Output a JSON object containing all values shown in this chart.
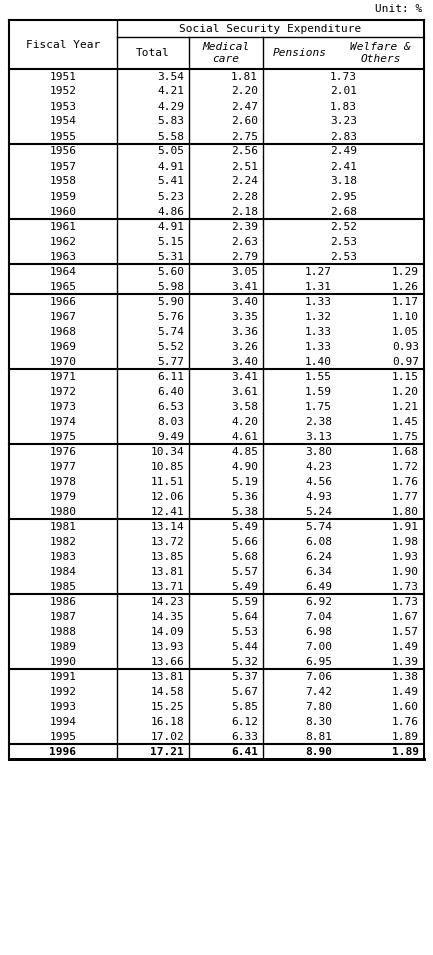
{
  "unit_label": "Unit: %",
  "col_headers_row1": [
    "Fiscal Year",
    "Social Security Expenditure"
  ],
  "col_headers_row2": [
    "",
    "Total",
    "Medical\ncare",
    "Pensions",
    "Welfare &\nOthers"
  ],
  "rows": [
    [
      "1951",
      "3.54",
      "1.81",
      "1.73",
      ""
    ],
    [
      "1952",
      "4.21",
      "2.20",
      "2.01",
      ""
    ],
    [
      "1953",
      "4.29",
      "2.47",
      "1.83",
      ""
    ],
    [
      "1954",
      "5.83",
      "2.60",
      "3.23",
      ""
    ],
    [
      "1955",
      "5.58",
      "2.75",
      "2.83",
      ""
    ],
    [
      "1956",
      "5.05",
      "2.56",
      "2.49",
      ""
    ],
    [
      "1957",
      "4.91",
      "2.51",
      "2.41",
      ""
    ],
    [
      "1958",
      "5.41",
      "2.24",
      "3.18",
      ""
    ],
    [
      "1959",
      "5.23",
      "2.28",
      "2.95",
      ""
    ],
    [
      "1960",
      "4.86",
      "2.18",
      "2.68",
      ""
    ],
    [
      "1961",
      "4.91",
      "2.39",
      "2.52",
      ""
    ],
    [
      "1962",
      "5.15",
      "2.63",
      "2.53",
      ""
    ],
    [
      "1963",
      "5.31",
      "2.79",
      "2.53",
      ""
    ],
    [
      "1964",
      "5.60",
      "3.05",
      "1.27",
      "1.29"
    ],
    [
      "1965",
      "5.98",
      "3.41",
      "1.31",
      "1.26"
    ],
    [
      "1966",
      "5.90",
      "3.40",
      "1.33",
      "1.17"
    ],
    [
      "1967",
      "5.76",
      "3.35",
      "1.32",
      "1.10"
    ],
    [
      "1968",
      "5.74",
      "3.36",
      "1.33",
      "1.05"
    ],
    [
      "1969",
      "5.52",
      "3.26",
      "1.33",
      "0.93"
    ],
    [
      "1970",
      "5.77",
      "3.40",
      "1.40",
      "0.97"
    ],
    [
      "1971",
      "6.11",
      "3.41",
      "1.55",
      "1.15"
    ],
    [
      "1972",
      "6.40",
      "3.61",
      "1.59",
      "1.20"
    ],
    [
      "1973",
      "6.53",
      "3.58",
      "1.75",
      "1.21"
    ],
    [
      "1974",
      "8.03",
      "4.20",
      "2.38",
      "1.45"
    ],
    [
      "1975",
      "9.49",
      "4.61",
      "3.13",
      "1.75"
    ],
    [
      "1976",
      "10.34",
      "4.85",
      "3.80",
      "1.68"
    ],
    [
      "1977",
      "10.85",
      "4.90",
      "4.23",
      "1.72"
    ],
    [
      "1978",
      "11.51",
      "5.19",
      "4.56",
      "1.76"
    ],
    [
      "1979",
      "12.06",
      "5.36",
      "4.93",
      "1.77"
    ],
    [
      "1980",
      "12.41",
      "5.38",
      "5.24",
      "1.80"
    ],
    [
      "1981",
      "13.14",
      "5.49",
      "5.74",
      "1.91"
    ],
    [
      "1982",
      "13.72",
      "5.66",
      "6.08",
      "1.98"
    ],
    [
      "1983",
      "13.85",
      "5.68",
      "6.24",
      "1.93"
    ],
    [
      "1984",
      "13.81",
      "5.57",
      "6.34",
      "1.90"
    ],
    [
      "1985",
      "13.71",
      "5.49",
      "6.49",
      "1.73"
    ],
    [
      "1986",
      "14.23",
      "5.59",
      "6.92",
      "1.73"
    ],
    [
      "1987",
      "14.35",
      "5.64",
      "7.04",
      "1.67"
    ],
    [
      "1988",
      "14.09",
      "5.53",
      "6.98",
      "1.57"
    ],
    [
      "1989",
      "13.93",
      "5.44",
      "7.00",
      "1.49"
    ],
    [
      "1990",
      "13.66",
      "5.32",
      "6.95",
      "1.39"
    ],
    [
      "1991",
      "13.81",
      "5.37",
      "7.06",
      "1.38"
    ],
    [
      "1992",
      "14.58",
      "5.67",
      "7.42",
      "1.49"
    ],
    [
      "1993",
      "15.25",
      "5.85",
      "7.80",
      "1.60"
    ],
    [
      "1994",
      "16.18",
      "6.12",
      "8.30",
      "1.76"
    ],
    [
      "1995",
      "17.02",
      "6.33",
      "8.81",
      "1.89"
    ],
    [
      "1996",
      "17.21",
      "6.41",
      "8.90",
      "1.89"
    ]
  ],
  "group_ends_0idx": [
    4,
    9,
    12,
    14,
    19,
    24,
    29,
    34,
    39,
    44,
    45
  ],
  "bg_color": "white",
  "line_color": "black",
  "text_color": "black",
  "font_size": 8.0
}
